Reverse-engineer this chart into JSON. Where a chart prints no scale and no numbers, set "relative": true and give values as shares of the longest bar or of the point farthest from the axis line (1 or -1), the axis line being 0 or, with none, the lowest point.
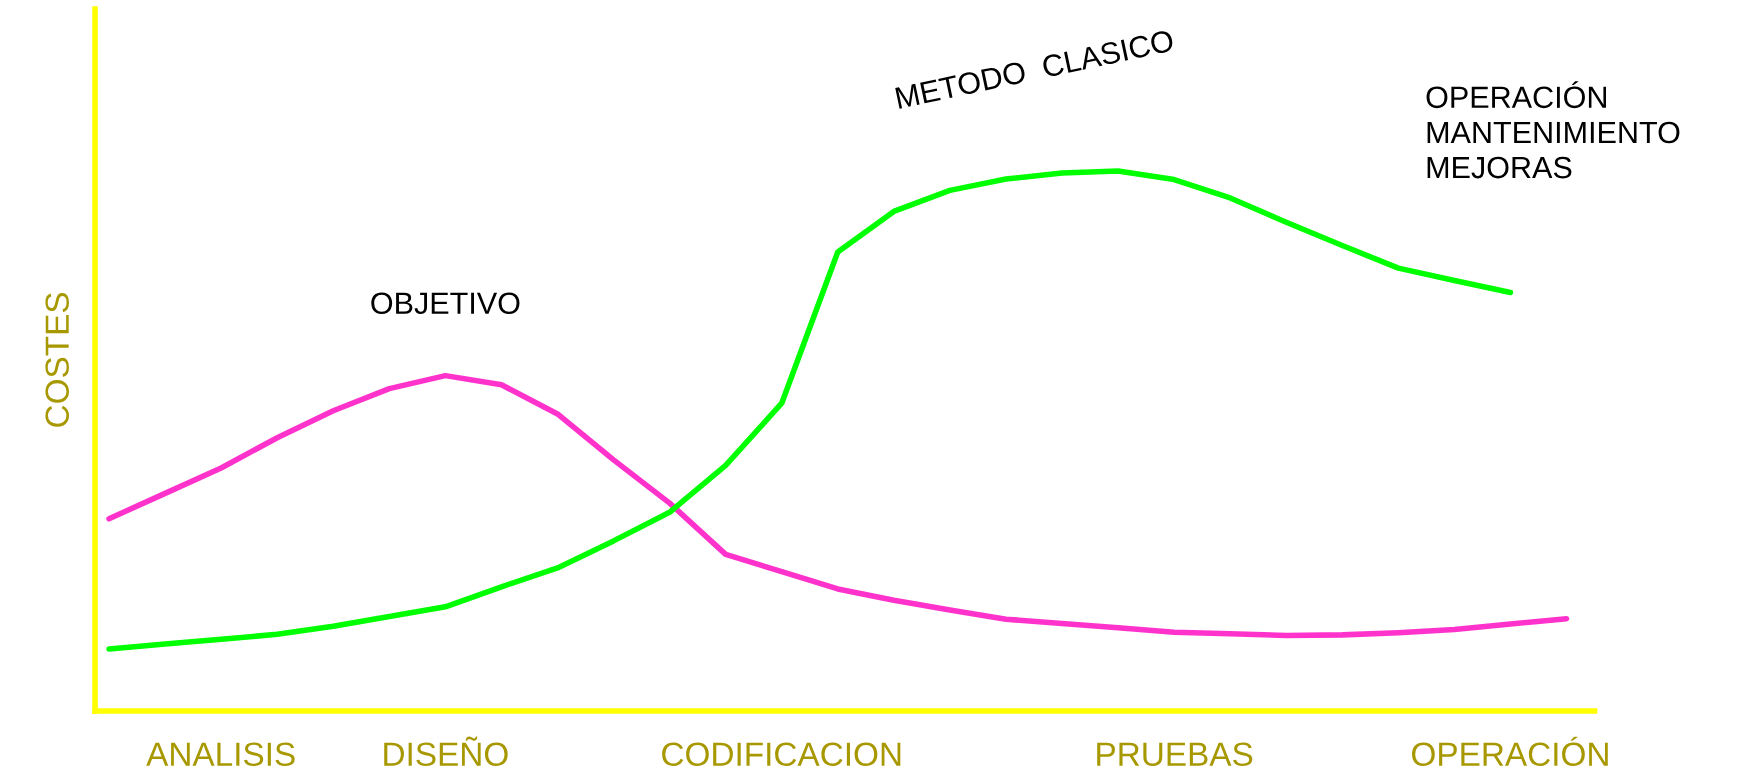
{
  "chart_data": {
    "type": "line",
    "relative": true,
    "ylabel": "COSTES",
    "categories": [
      null,
      null,
      "ANALISIS",
      null,
      null,
      null,
      "DISEÑO",
      null,
      null,
      null,
      null,
      null,
      "CODIFICACION",
      null,
      null,
      null,
      null,
      null,
      null,
      "PRUEBAS",
      null,
      null,
      null,
      null,
      null,
      "OPERACIÓN",
      null
    ],
    "series": [
      {
        "name": "OBJETIVO",
        "color": "#ff33cc",
        "values": [
          0.356,
          0.403,
          0.45,
          0.506,
          0.556,
          0.597,
          0.621,
          0.604,
          0.55,
          0.465,
          0.385,
          0.29,
          0.258,
          0.226,
          0.205,
          0.187,
          0.17,
          0.162,
          0.154,
          0.146,
          0.143,
          0.14,
          0.141,
          0.145,
          0.151,
          0.161,
          0.171
        ]
      },
      {
        "name": "METODO  CLASICO",
        "color": "#00ff00",
        "values": [
          0.115,
          0.124,
          0.133,
          0.142,
          0.157,
          0.175,
          0.193,
          0.23,
          0.265,
          0.315,
          0.368,
          0.455,
          0.57,
          0.85,
          0.925,
          0.964,
          0.985,
          0.996,
          1,
          0.984,
          0.95,
          0.905,
          0.862,
          0.82,
          0.797,
          0.775,
          null
        ]
      }
    ],
    "annotations": [
      "OPERACIÓN\nMANTENIMIENTO\nMEJORAS"
    ]
  }
}
